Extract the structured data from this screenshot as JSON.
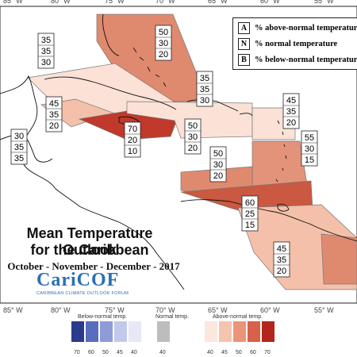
{
  "map": {
    "longitude_ticks": [
      "85° W",
      "80° W",
      "75° W",
      "70° W",
      "65° W",
      "60° W",
      "55° W"
    ],
    "forecast_boxes": [
      {
        "id": "bahamas-north",
        "above": "50",
        "normal": "30",
        "below": "20",
        "fill": "#df8a6f"
      },
      {
        "id": "gulf-mexico",
        "above": "35",
        "normal": "35",
        "below": "30",
        "fill": "#ffffff"
      },
      {
        "id": "bahamas-south",
        "above": "35",
        "normal": "35",
        "below": "30",
        "fill": "#fbe1d6"
      },
      {
        "id": "cuba-west",
        "above": "45",
        "normal": "35",
        "below": "20",
        "fill": "#f4c0aa"
      },
      {
        "id": "belize-yucatan",
        "above": "30",
        "normal": "35",
        "below": "35",
        "fill": "#ffffff"
      },
      {
        "id": "jamaica",
        "above": "70",
        "normal": "20",
        "below": "10",
        "fill": "#c0392b"
      },
      {
        "id": "hispaniola",
        "above": "50",
        "normal": "30",
        "below": "20",
        "fill": "#fbe1d6"
      },
      {
        "id": "leeward",
        "above": "45",
        "normal": "35",
        "below": "20",
        "fill": "#fbe1d6"
      },
      {
        "id": "central-caribbean",
        "above": "50",
        "normal": "30",
        "below": "20",
        "fill": "#df8a6f"
      },
      {
        "id": "windward",
        "above": "55",
        "normal": "30",
        "below": "15",
        "fill": "#e3937a"
      },
      {
        "id": "southern-caribbean",
        "above": "60",
        "normal": "25",
        "below": "15",
        "fill": "#cb5840"
      },
      {
        "id": "guianas",
        "above": "45",
        "normal": "35",
        "below": "20",
        "fill": "#f4c0aa"
      }
    ]
  },
  "legend": {
    "rows": [
      {
        "key": "A",
        "label": "% above-normal temperature"
      },
      {
        "key": "N",
        "label": "% normal temperature"
      },
      {
        "key": "B",
        "label": "% below-normal temperature"
      }
    ]
  },
  "title": {
    "line1": "Mean Temperature Outlook",
    "line2": "for the Caribbean",
    "period": "October - November - December - 2017"
  },
  "logo": {
    "name": "CariCOF",
    "tagline": "CARIBBEAN CLIMATE OUTLOOK FORUM"
  },
  "colorbar": {
    "below_title": "Below-normal temp.",
    "normal_title": "Normal temp.",
    "above_title": "Above-normal temp.",
    "below_values": [
      "70",
      "60",
      "50",
      "45",
      "40"
    ],
    "normal_values": [
      "40"
    ],
    "above_values": [
      "40",
      "45",
      "50",
      "60",
      "70"
    ],
    "below_colors": [
      "#2b3a8c",
      "#5a6cc0",
      "#8f9bd6",
      "#c3c9ea",
      "#e6e8f6"
    ],
    "normal_colors": [
      "#bdbdbd"
    ],
    "above_colors": [
      "#fbe7de",
      "#f6c3ae",
      "#ec9477",
      "#d8614a",
      "#b3261c"
    ]
  }
}
